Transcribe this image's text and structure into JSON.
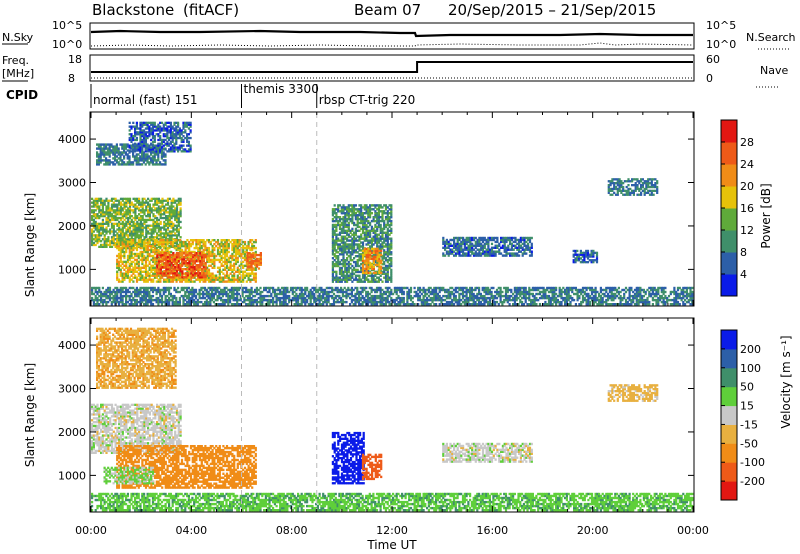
{
  "header": {
    "radar": "Blackstone",
    "mode": "(fitACF)",
    "beam": "Beam 07",
    "date_range": "20/Sep/2015 – 21/Sep/2015"
  },
  "left_labels": {
    "nsky": "N.Sky",
    "freq_line1": "Freq.",
    "freq_line2": "[MHz]",
    "cpid": "CPID"
  },
  "right_labels": {
    "nsearch": "N.Search",
    "nave": "Nave"
  },
  "noise_panel": {
    "left_ticks": [
      "10^5",
      "10^0"
    ],
    "right_ticks": [
      "10^5",
      "10^0"
    ]
  },
  "freq_panel": {
    "left_ticks": [
      "18",
      "8"
    ],
    "right_ticks": [
      "60",
      "0"
    ],
    "nave_step_hour": 13.0
  },
  "cpid_segments": [
    {
      "start_hour": 0.0,
      "label": "normal (fast) 151"
    },
    {
      "start_hour": 6.0,
      "label": "themis 3300"
    },
    {
      "start_hour": 9.0,
      "label": "rbsp CT-trig 220"
    }
  ],
  "colors": {
    "power": [
      "#0a1be8",
      "#2c5fa8",
      "#3f8f6a",
      "#5faa3a",
      "#e6c20a",
      "#f08c17",
      "#ee5a18",
      "#e21712"
    ],
    "velocity": [
      "#e21712",
      "#ee5a18",
      "#f08c17",
      "#e8b040",
      "#c8c8c8",
      "#5fcf3a",
      "#3f8f6a",
      "#2c5fa8",
      "#0a1be8"
    ]
  },
  "chart_data": [
    {
      "type": "heatmap",
      "title": "Power",
      "xlabel": "",
      "ylabel": "Slant Range [km]",
      "xlim": [
        0,
        24
      ],
      "ylim": [
        180,
        4600
      ],
      "yticks": [
        "1000",
        "2000",
        "3000",
        "4000"
      ],
      "colorbar": {
        "label": "Power [dB]",
        "range": [
          0,
          32
        ],
        "ticks": [
          "4",
          "8",
          "12",
          "16",
          "20",
          "24",
          "28"
        ]
      },
      "echo_regions": [
        {
          "t_start": 0.2,
          "t_end": 3.0,
          "r_start": 3400,
          "r_end": 3900,
          "power_dB": 8
        },
        {
          "t_start": 1.5,
          "t_end": 4.0,
          "r_start": 3700,
          "r_end": 4400,
          "power_dB": 6
        },
        {
          "t_start": 0.0,
          "t_end": 3.6,
          "r_start": 1500,
          "r_end": 2650,
          "power_dB": 14
        },
        {
          "t_start": 1.0,
          "t_end": 6.6,
          "r_start": 700,
          "r_end": 1700,
          "power_dB": 18
        },
        {
          "t_start": 2.6,
          "t_end": 4.6,
          "r_start": 800,
          "r_end": 1400,
          "power_dB": 26
        },
        {
          "t_start": 6.2,
          "t_end": 6.8,
          "r_start": 1000,
          "r_end": 1400,
          "power_dB": 24
        },
        {
          "t_start": 9.6,
          "t_end": 12.0,
          "r_start": 700,
          "r_end": 2500,
          "power_dB": 10
        },
        {
          "t_start": 10.8,
          "t_end": 11.6,
          "r_start": 900,
          "r_end": 1500,
          "power_dB": 22
        },
        {
          "t_start": 14.0,
          "t_end": 17.6,
          "r_start": 1300,
          "r_end": 1750,
          "power_dB": 7
        },
        {
          "t_start": 19.2,
          "t_end": 20.2,
          "r_start": 1150,
          "r_end": 1450,
          "power_dB": 6
        },
        {
          "t_start": 20.6,
          "t_end": 22.6,
          "r_start": 2700,
          "r_end": 3100,
          "power_dB": 8
        },
        {
          "t_start": 0.0,
          "t_end": 24.0,
          "r_start": 180,
          "r_end": 600,
          "power_dB": 8
        }
      ]
    },
    {
      "type": "heatmap",
      "title": "Velocity",
      "xlabel": "Time UT",
      "ylabel": "Slant Range [km]",
      "xlim": [
        0,
        24
      ],
      "xticks": [
        "00:00",
        "04:00",
        "08:00",
        "12:00",
        "16:00",
        "20:00",
        "00:00"
      ],
      "ylim": [
        180,
        4600
      ],
      "yticks": [
        "1000",
        "2000",
        "3000",
        "4000"
      ],
      "colorbar": {
        "label": "Velocity [m s⁻¹]",
        "range": [
          -250,
          250
        ],
        "ticks": [
          "200",
          "100",
          "50",
          "15",
          "-15",
          "-50",
          "-100",
          "-200"
        ]
      },
      "echo_regions": [
        {
          "t_start": 0.2,
          "t_end": 3.4,
          "r_start": 3000,
          "r_end": 4400,
          "velocity": -40
        },
        {
          "t_start": 0.0,
          "t_end": 3.6,
          "r_start": 1500,
          "r_end": 2650,
          "velocity": 0
        },
        {
          "t_start": 1.0,
          "t_end": 6.6,
          "r_start": 700,
          "r_end": 1700,
          "velocity": -70
        },
        {
          "t_start": 0.5,
          "t_end": 2.5,
          "r_start": 800,
          "r_end": 1200,
          "velocity": 20
        },
        {
          "t_start": 9.6,
          "t_end": 10.9,
          "r_start": 800,
          "r_end": 2000,
          "velocity": 220
        },
        {
          "t_start": 10.8,
          "t_end": 11.6,
          "r_start": 900,
          "r_end": 1500,
          "velocity": -150
        },
        {
          "t_start": 14.0,
          "t_end": 17.6,
          "r_start": 1300,
          "r_end": 1750,
          "velocity": 0
        },
        {
          "t_start": 20.6,
          "t_end": 22.6,
          "r_start": 2700,
          "r_end": 3100,
          "velocity": -30
        },
        {
          "t_start": 0.0,
          "t_end": 24.0,
          "r_start": 180,
          "r_end": 600,
          "velocity": 40
        }
      ]
    }
  ]
}
